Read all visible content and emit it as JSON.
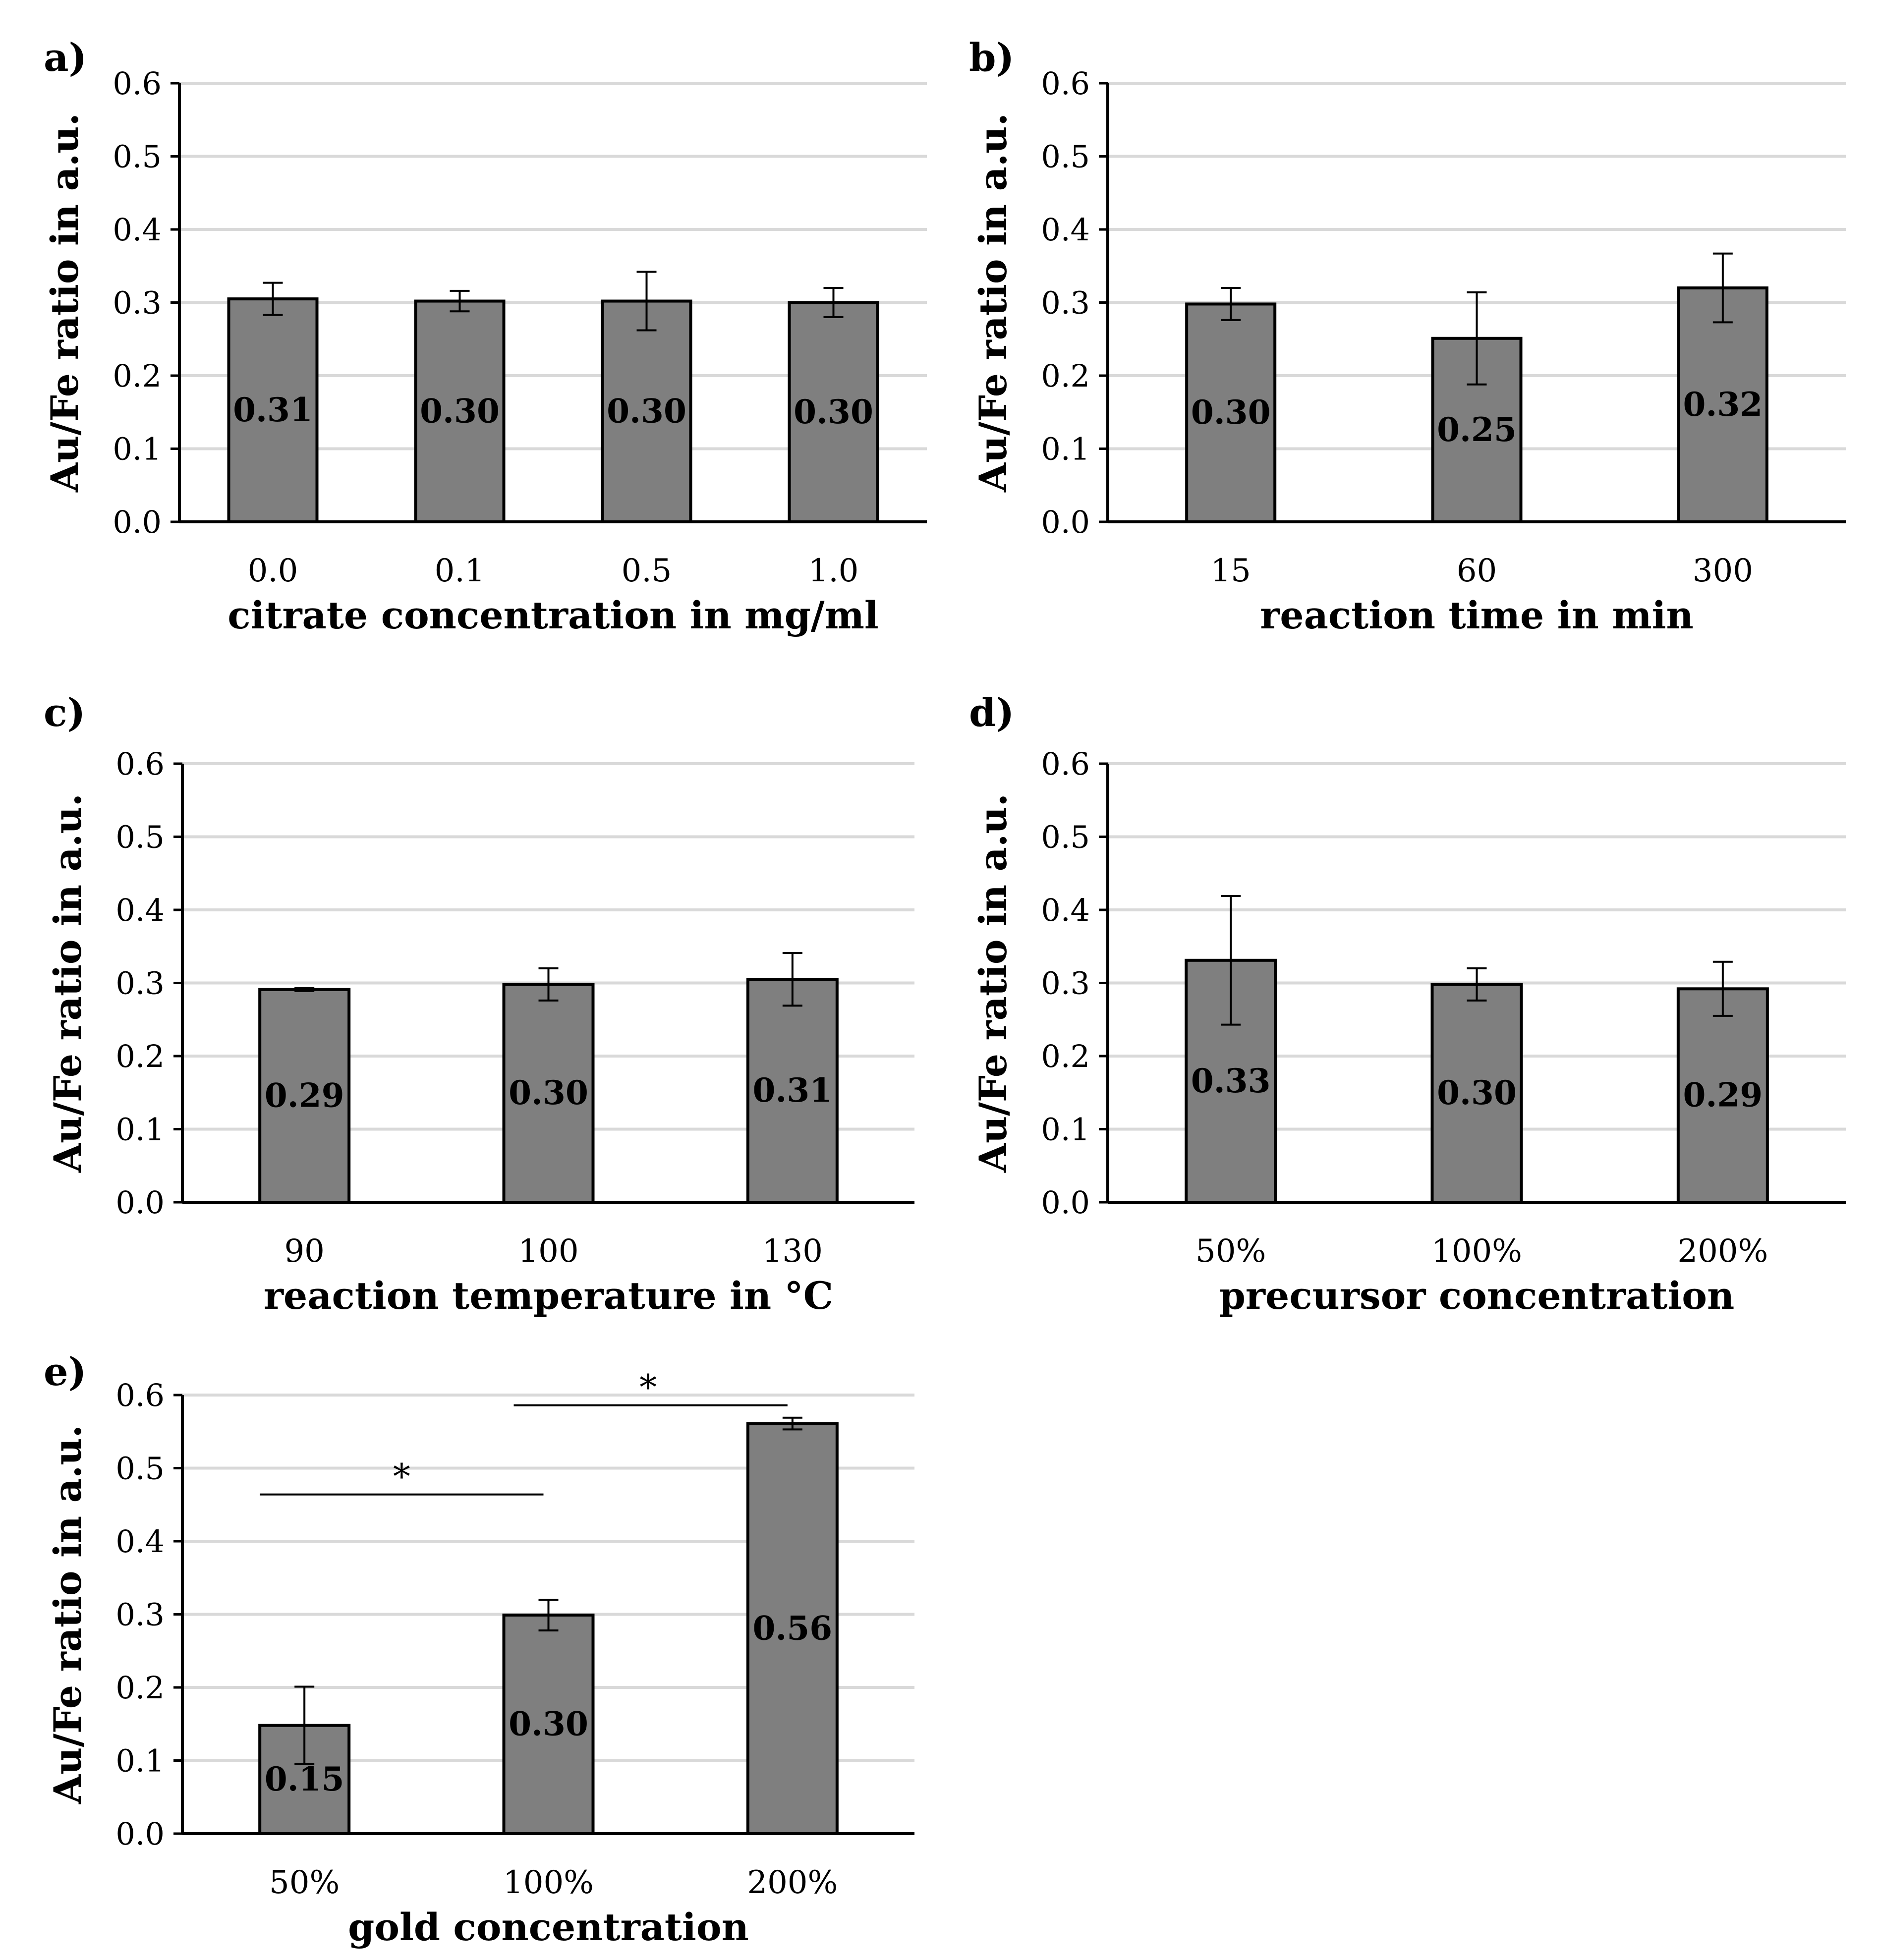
{
  "figure": {
    "colors": {
      "bar": "#7f7f7f",
      "bar_edge": "#000000",
      "grid": "#d9d9d9",
      "axis": "#000000",
      "text": "#000000"
    }
  },
  "chart_data": [
    {
      "panel": "a)",
      "type": "bar",
      "xlabel": "citrate concentration in mg/ml",
      "ylabel": "Au/Fe ratio in a.u.",
      "ylim": [
        0,
        0.6
      ],
      "yticks": [
        "0.0",
        "0.1",
        "0.2",
        "0.3",
        "0.4",
        "0.5",
        "0.6"
      ],
      "grid": true,
      "categories": [
        "0.0",
        "0.1",
        "0.5",
        "1.0"
      ],
      "values": [
        0.305,
        0.302,
        0.302,
        0.3
      ],
      "errors": [
        0.022,
        0.014,
        0.04,
        0.02
      ],
      "data_labels": [
        "0.31",
        "0.30",
        "0.30",
        "0.30"
      ]
    },
    {
      "panel": "b)",
      "type": "bar",
      "xlabel": "reaction time in min",
      "ylabel": "Au/Fe ratio in a.u.",
      "ylim": [
        0,
        0.6
      ],
      "yticks": [
        "0.0",
        "0.1",
        "0.2",
        "0.3",
        "0.4",
        "0.5",
        "0.6"
      ],
      "grid": true,
      "categories": [
        "15",
        "60",
        "300"
      ],
      "values": [
        0.298,
        0.251,
        0.32
      ],
      "errors": [
        0.022,
        0.063,
        0.047
      ],
      "data_labels": [
        "0.30",
        "0.25",
        "0.32"
      ]
    },
    {
      "panel": "c)",
      "type": "bar",
      "xlabel": "reaction temperature in °C",
      "ylabel": "Au/Fe ratio in a.u.",
      "ylim": [
        0,
        0.6
      ],
      "yticks": [
        "0.0",
        "0.1",
        "0.2",
        "0.3",
        "0.4",
        "0.5",
        "0.6"
      ],
      "grid": true,
      "categories": [
        "90",
        "100",
        "130"
      ],
      "values": [
        0.291,
        0.298,
        0.305
      ],
      "errors": [
        0.002,
        0.022,
        0.036
      ],
      "data_labels": [
        "0.29",
        "0.30",
        "0.31"
      ]
    },
    {
      "panel": "d)",
      "type": "bar",
      "xlabel": "precursor concentration",
      "ylabel": "Au/Fe ratio in a.u.",
      "ylim": [
        0,
        0.6
      ],
      "yticks": [
        "0.0",
        "0.1",
        "0.2",
        "0.3",
        "0.4",
        "0.5",
        "0.6"
      ],
      "grid": true,
      "categories": [
        "50%",
        "100%",
        "200%"
      ],
      "values": [
        0.331,
        0.298,
        0.292
      ],
      "errors": [
        0.088,
        0.022,
        0.037
      ],
      "data_labels": [
        "0.33",
        "0.30",
        "0.29"
      ]
    },
    {
      "panel": "e)",
      "type": "bar",
      "xlabel": "gold concentration",
      "ylabel": "Au/Fe ratio in a.u.",
      "ylim": [
        0,
        0.6
      ],
      "yticks": [
        "0.0",
        "0.1",
        "0.2",
        "0.3",
        "0.4",
        "0.5",
        "0.6"
      ],
      "grid": true,
      "categories": [
        "50%",
        "100%",
        "200%"
      ],
      "values": [
        0.148,
        0.299,
        0.561
      ],
      "errors": [
        0.053,
        0.021,
        0.008
      ],
      "data_labels": [
        "0.15",
        "0.30",
        "0.56"
      ],
      "significance": [
        {
          "from": 0,
          "to": 1,
          "y": 0.464,
          "label": "*"
        },
        {
          "from": 1,
          "to": 2,
          "y": 0.586,
          "label": "*"
        }
      ]
    }
  ]
}
